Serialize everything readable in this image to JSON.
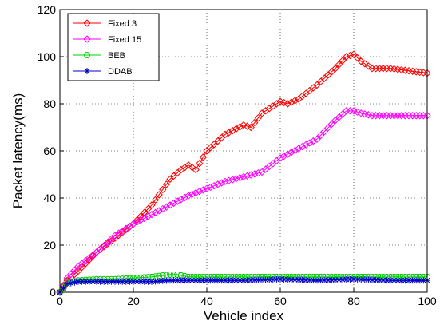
{
  "chart_data": {
    "type": "line",
    "title": "",
    "xlabel": "Vehicle index",
    "ylabel": "Packet latency(ms)",
    "xlim": [
      0,
      100
    ],
    "ylim": [
      0,
      120
    ],
    "xticks": [
      "0",
      "20",
      "40",
      "60",
      "80",
      "100"
    ],
    "yticks": [
      "0",
      "20",
      "40",
      "60",
      "80",
      "100",
      "120"
    ],
    "grid": true,
    "legend_position": "top-left",
    "series": [
      {
        "name": "Fixed 3",
        "color": "#ff0000",
        "marker": "diamond",
        "x": [
          0,
          2,
          5,
          10,
          15,
          20,
          25,
          30,
          33,
          35,
          37,
          40,
          45,
          50,
          52,
          55,
          60,
          62,
          65,
          70,
          75,
          78,
          80,
          82,
          85,
          90,
          95,
          100
        ],
        "y": [
          0,
          5,
          9,
          17,
          23,
          29,
          37,
          48,
          52,
          54,
          52,
          60,
          67,
          71,
          70,
          76,
          81,
          80,
          82,
          88,
          95,
          100,
          101,
          98,
          95,
          95,
          94,
          93
        ]
      },
      {
        "name": "Fixed 15",
        "color": "#ff00ff",
        "marker": "diamond",
        "x": [
          0,
          2,
          5,
          10,
          15,
          20,
          25,
          30,
          35,
          40,
          45,
          50,
          55,
          60,
          65,
          70,
          75,
          78,
          80,
          82,
          85,
          90,
          95,
          100
        ],
        "y": [
          0,
          6,
          11,
          17,
          24,
          29,
          33,
          37,
          41,
          44,
          47,
          49,
          51,
          57,
          61,
          65,
          73,
          77,
          77,
          76,
          75,
          75,
          75,
          75
        ]
      },
      {
        "name": "BEB",
        "color": "#00cc00",
        "marker": "circle",
        "x": [
          0,
          2,
          5,
          10,
          15,
          20,
          25,
          30,
          32,
          35,
          40,
          50,
          60,
          70,
          80,
          90,
          100
        ],
        "y": [
          0,
          4,
          5,
          5.5,
          5.5,
          6,
          6.5,
          7.5,
          7.5,
          6.5,
          6.5,
          6.5,
          6.5,
          6.5,
          6.5,
          6.5,
          6.5
        ]
      },
      {
        "name": "DDAB",
        "color": "#0000cc",
        "marker": "star",
        "x": [
          0,
          2,
          5,
          10,
          15,
          20,
          25,
          30,
          35,
          40,
          50,
          60,
          70,
          80,
          90,
          100
        ],
        "y": [
          0,
          3.5,
          4.5,
          4.5,
          4.5,
          4.5,
          4.5,
          5,
          5,
          5,
          5,
          5.5,
          5,
          5.5,
          5,
          5
        ]
      }
    ]
  }
}
